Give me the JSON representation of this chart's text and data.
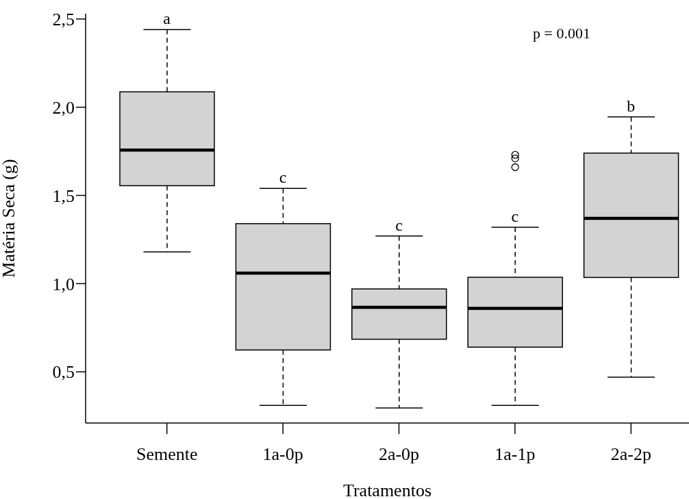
{
  "chart_data": {
    "type": "box",
    "xlabel": "Tratamentos",
    "ylabel": "Matéria Seca (g)",
    "color": "#d3d3d3",
    "categories": [
      "Semente",
      "1a-0p",
      "2a-0p",
      "1a-1p",
      "2a-2p"
    ],
    "boxes": [
      {
        "low": 1.18,
        "q1": 1.555,
        "median": 1.757,
        "q3": 2.087,
        "high": 2.44
      },
      {
        "low": 0.31,
        "q1": 0.624,
        "median": 1.06,
        "q3": 1.34,
        "high": 1.54
      },
      {
        "low": 0.295,
        "q1": 0.685,
        "median": 0.866,
        "q3": 0.97,
        "high": 1.27
      },
      {
        "low": 0.31,
        "q1": 0.64,
        "median": 0.86,
        "q3": 1.036,
        "high": 1.32,
        "outliers": [
          1.73,
          1.71,
          1.66
        ]
      },
      {
        "low": 0.47,
        "q1": 1.035,
        "median": 1.37,
        "q3": 1.74,
        "high": 1.945
      }
    ],
    "ylim": [
      0.21,
      2.53
    ],
    "yticks": [
      {
        "value": 0.5,
        "label": "0,5"
      },
      {
        "value": 1.0,
        "label": "1,0"
      },
      {
        "value": 1.5,
        "label": "1,5"
      },
      {
        "value": 2.0,
        "label": "2,0"
      },
      {
        "value": 2.5,
        "label": "2,5"
      }
    ],
    "annotations": [
      {
        "text": "a",
        "x": "Semente",
        "y": 2.44
      },
      {
        "text": "c",
        "x": "1a-0p",
        "y": 1.54
      },
      {
        "text": "c",
        "x": "2a-0p",
        "y": 1.27
      },
      {
        "text": "c",
        "x": "1a-1p",
        "y": 1.32
      },
      {
        "text": "b",
        "x": "2a-2p",
        "y": 1.945
      },
      "p = 0.001"
    ]
  }
}
